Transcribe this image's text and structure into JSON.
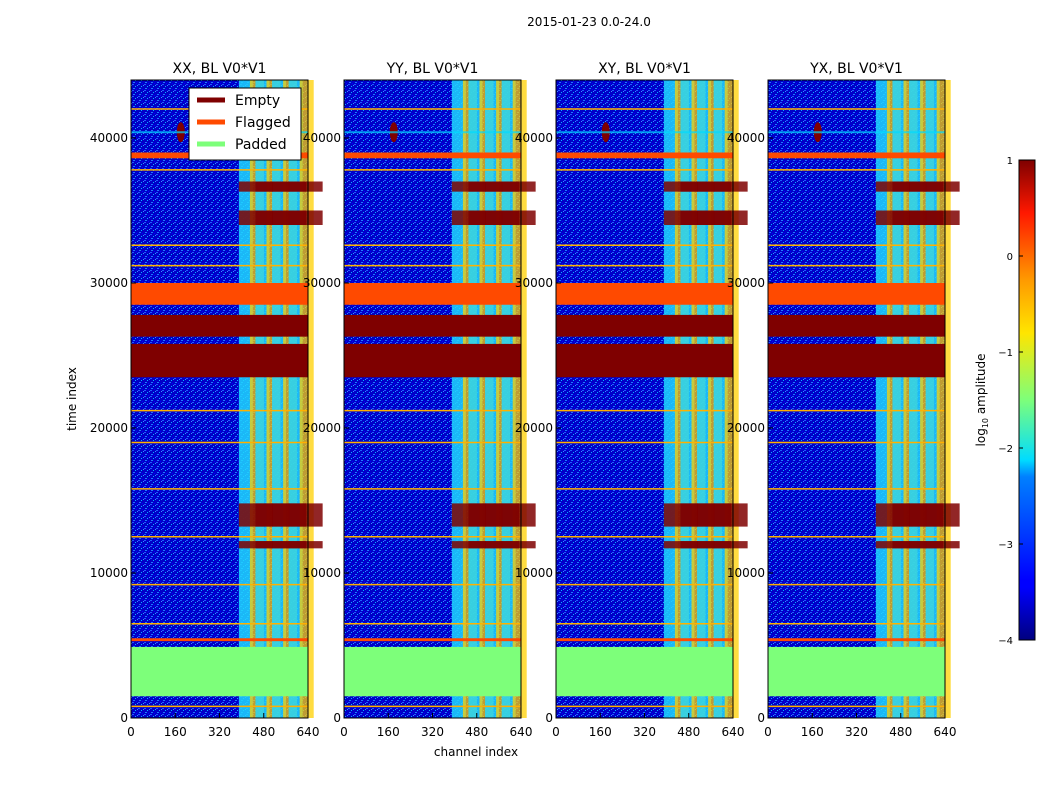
{
  "figure": {
    "suptitle": "2015-01-23 0.0-24.0"
  },
  "colors": {
    "empty": "#7f0000",
    "flagged": "#ff4a00",
    "padded": "#7dff7a",
    "background_low": "#0000c8",
    "noise_mid": "#1e78ff"
  },
  "chart_data": {
    "type": "heatmap",
    "xlabel": "channel index",
    "ylabel": "time index",
    "xlim": [
      0,
      640
    ],
    "ylim": [
      0,
      44000
    ],
    "xticks": [
      "0",
      "160",
      "320",
      "480",
      "640"
    ],
    "xtick_values": [
      0,
      160,
      320,
      480,
      640
    ],
    "yticks": [
      "0",
      "10000",
      "20000",
      "30000",
      "40000"
    ],
    "ytick_values": [
      0,
      10000,
      20000,
      30000,
      40000
    ],
    "panels": [
      {
        "title": "XX, BL V0*V1"
      },
      {
        "title": "YY, BL V0*V1"
      },
      {
        "title": "XY, BL V0*V1"
      },
      {
        "title": "YX, BL V0*V1"
      }
    ],
    "legend": {
      "placement": "top-right of first panel",
      "entries": [
        {
          "label": "Empty",
          "color": "#7f0000"
        },
        {
          "label": "Flagged",
          "color": "#ff4a00"
        },
        {
          "label": "Padded",
          "color": "#7dff7a"
        }
      ]
    },
    "colorbar": {
      "label": "log10 amplitude",
      "label_base": "log",
      "label_sub": "10",
      "label_rest": " amplitude",
      "range": [
        -4,
        1
      ],
      "ticks": [
        "1",
        "0",
        "−1",
        "−2",
        "−3",
        "−4"
      ],
      "tick_values": [
        1,
        0,
        -1,
        -2,
        -3,
        -4
      ]
    },
    "regions": {
      "padded_time": [
        1500,
        4900
      ],
      "empty_time_bands": [
        [
          23500,
          25800
        ],
        [
          26300,
          27800
        ]
      ],
      "flagged_time_bands": [
        [
          28500,
          30000
        ],
        [
          38600,
          39000
        ],
        [
          5300,
          5500
        ]
      ],
      "rfi_channels": [
        390,
        430,
        450,
        490,
        510,
        550,
        570,
        610
      ]
    }
  }
}
